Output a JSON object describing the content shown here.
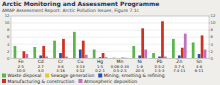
{
  "chart_data": {
    "type": "bar",
    "title": "Arctic Monitoring and Assessment Programme",
    "subtitle": "AMAP Assessment Report: Arctic Pollution Issues, Figure 7.1c",
    "categories": [
      "Fe",
      "Cd",
      "Cr",
      "Cu",
      "Hg",
      "Mn",
      "Ni",
      "Pb",
      "Zn",
      "Sn"
    ],
    "series": [
      {
        "name": "Waste disposal",
        "color": "#5ab54b",
        "values": [
          3.5,
          3.2,
          5.0,
          7.5,
          2.5,
          0.2,
          3.5,
          1.5,
          5.5,
          4.5
        ]
      },
      {
        "name": "Sewage generation",
        "color": "#e8c830",
        "values": [
          0.0,
          0.0,
          0.0,
          0.0,
          0.0,
          0.0,
          0.0,
          0.0,
          0.0,
          0.0
        ]
      },
      {
        "name": "Mining, smelting & refining",
        "color": "#2050b0",
        "values": [
          0.0,
          0.8,
          1.5,
          2.5,
          0.3,
          0.0,
          0.8,
          0.5,
          0.8,
          1.2
        ]
      },
      {
        "name": "Manufacturing & construction",
        "color": "#d03020",
        "values": [
          2.0,
          3.5,
          5.5,
          5.0,
          1.5,
          0.2,
          8.5,
          10.5,
          3.0,
          6.5
        ]
      },
      {
        "name": "Atmospheric deposition",
        "color": "#c070c0",
        "values": [
          1.2,
          0.5,
          0.5,
          1.0,
          0.3,
          0.15,
          2.5,
          0.5,
          7.0,
          2.5
        ]
      }
    ],
    "annotations": [
      [
        "2-5",
        "10-0"
      ],
      [
        "2.7",
        "3.0"
      ],
      [
        "3-8",
        "4-16"
      ],
      [
        "3-13",
        "4-12"
      ],
      [
        "1-5",
        "0.2-1"
      ],
      [
        "0.06-0.33",
        "0.5-2.5"
      ],
      [
        "1-8",
        "20-3"
      ],
      [
        "0.5-2",
        "1.5-3"
      ],
      [
        "0.7-4",
        "7.4-11"
      ],
      [
        "4-8",
        "6-11"
      ]
    ],
    "ylim": [
      0,
      12
    ],
    "yticks": [
      0,
      2,
      4,
      6,
      8,
      10,
      12
    ],
    "y2lim": [
      0,
      12
    ],
    "y2ticks": [
      0,
      2,
      4,
      6,
      8,
      10,
      12
    ],
    "grid": true,
    "legend": "bottom"
  }
}
